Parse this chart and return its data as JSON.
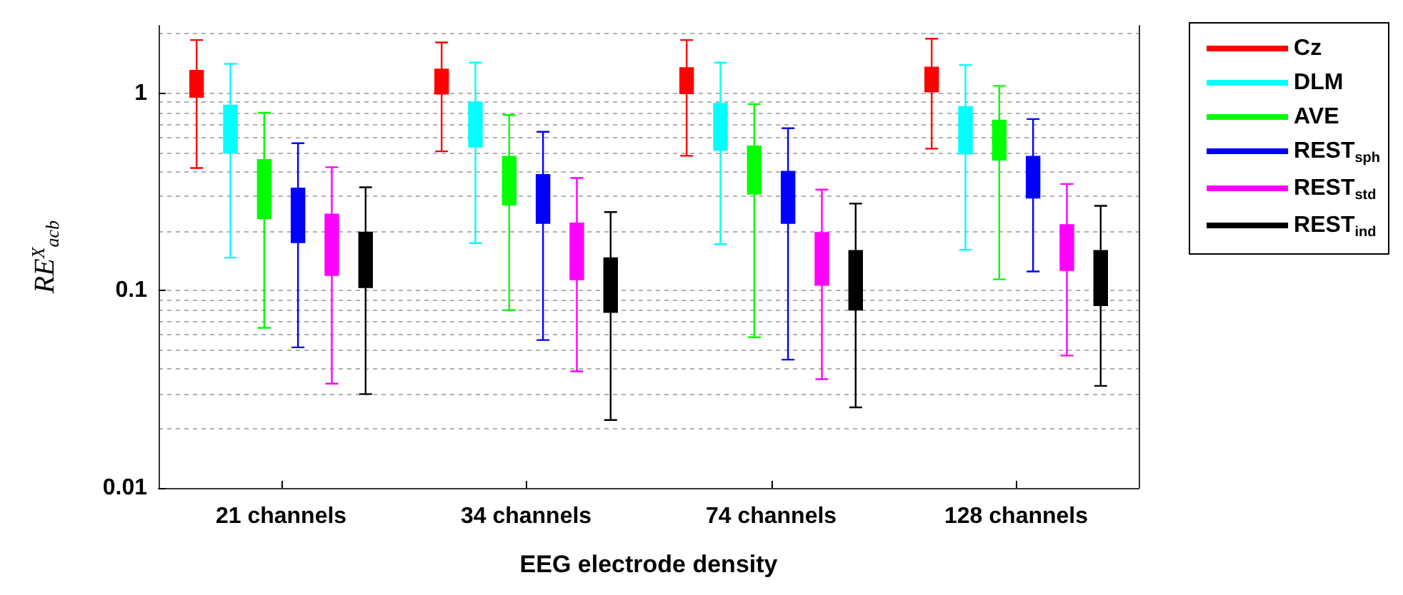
{
  "chart_data": {
    "type": "box",
    "xlabel": "EEG electrode density",
    "ylabel": "RE$^{X}$$_{acb}$",
    "categories": [
      "21 channels",
      "34 channels",
      "74 channels",
      "128 channels"
    ],
    "log": true,
    "ylim": [
      0.01,
      2.2
    ],
    "yticks": [
      0.01,
      0.1,
      1
    ],
    "grid": true,
    "legend": "right",
    "series": [
      {
        "name": "Cz",
        "color": "#ff0000",
        "boxes": [
          {
            "low": 0.418,
            "q1": 0.958,
            "median": 1.14,
            "q3": 1.3,
            "high": 1.86
          },
          {
            "low": 0.508,
            "q1": 0.995,
            "median": 1.17,
            "q3": 1.32,
            "high": 1.81
          },
          {
            "low": 0.482,
            "q1": 1.0,
            "median": 1.2,
            "q3": 1.34,
            "high": 1.86
          },
          {
            "low": 0.524,
            "q1": 1.02,
            "median": 1.22,
            "q3": 1.35,
            "high": 1.89
          }
        ]
      },
      {
        "name": "DLM",
        "color": "#00ffff",
        "boxes": [
          {
            "low": 0.147,
            "q1": 0.5,
            "median": 0.68,
            "q3": 0.867,
            "high": 1.41
          },
          {
            "low": 0.174,
            "q1": 0.536,
            "median": 0.713,
            "q3": 0.9,
            "high": 1.43
          },
          {
            "low": 0.172,
            "q1": 0.516,
            "median": 0.702,
            "q3": 0.885,
            "high": 1.43
          },
          {
            "low": 0.161,
            "q1": 0.495,
            "median": 0.673,
            "q3": 0.853,
            "high": 1.39
          }
        ]
      },
      {
        "name": "AVE",
        "color": "#00ff00",
        "boxes": [
          {
            "low": 0.0648,
            "q1": 0.233,
            "median": 0.331,
            "q3": 0.459,
            "high": 0.797
          },
          {
            "low": 0.0797,
            "q1": 0.272,
            "median": 0.372,
            "q3": 0.477,
            "high": 0.776
          },
          {
            "low": 0.058,
            "q1": 0.31,
            "median": 0.422,
            "q3": 0.538,
            "high": 0.881
          },
          {
            "low": 0.114,
            "q1": 0.461,
            "median": 0.599,
            "q3": 0.728,
            "high": 1.09
          }
        ]
      },
      {
        "name": "REST$_{sph}$",
        "color": "#0000ff",
        "boxes": [
          {
            "low": 0.0516,
            "q1": 0.176,
            "median": 0.243,
            "q3": 0.329,
            "high": 0.558
          },
          {
            "low": 0.0562,
            "q1": 0.22,
            "median": 0.291,
            "q3": 0.386,
            "high": 0.638
          },
          {
            "low": 0.0447,
            "q1": 0.22,
            "median": 0.305,
            "q3": 0.4,
            "high": 0.665
          },
          {
            "low": 0.125,
            "q1": 0.296,
            "median": 0.386,
            "q3": 0.477,
            "high": 0.74
          }
        ]
      },
      {
        "name": "REST$_{std}$",
        "color": "#ff00ff",
        "boxes": [
          {
            "low": 0.0338,
            "q1": 0.12,
            "median": 0.17,
            "q3": 0.243,
            "high": 0.422
          },
          {
            "low": 0.039,
            "q1": 0.114,
            "median": 0.157,
            "q3": 0.219,
            "high": 0.372
          },
          {
            "low": 0.0356,
            "q1": 0.107,
            "median": 0.147,
            "q3": 0.196,
            "high": 0.325
          },
          {
            "low": 0.0469,
            "q1": 0.127,
            "median": 0.167,
            "q3": 0.215,
            "high": 0.347
          }
        ]
      },
      {
        "name": "REST$_{ind}$",
        "color": "#000000",
        "boxes": [
          {
            "low": 0.0299,
            "q1": 0.104,
            "median": 0.143,
            "q3": 0.197,
            "high": 0.334
          },
          {
            "low": 0.0221,
            "q1": 0.078,
            "median": 0.106,
            "q3": 0.146,
            "high": 0.25
          },
          {
            "low": 0.0256,
            "q1": 0.08,
            "median": 0.112,
            "q3": 0.159,
            "high": 0.276
          },
          {
            "low": 0.0329,
            "q1": 0.0844,
            "median": 0.114,
            "q3": 0.159,
            "high": 0.269
          }
        ]
      }
    ]
  }
}
